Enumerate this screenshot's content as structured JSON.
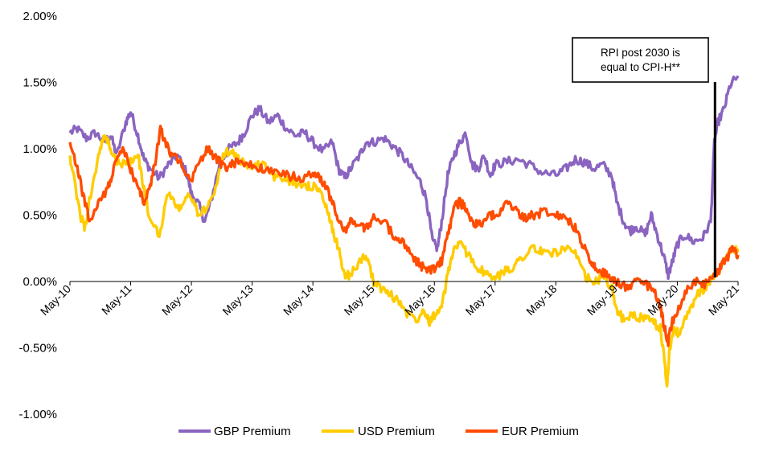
{
  "chart_data": {
    "type": "line",
    "title": "",
    "xlabel": "",
    "ylabel": "",
    "ylim": [
      -1.0,
      2.0
    ],
    "y_ticks": [
      "2.00%",
      "1.50%",
      "1.00%",
      "0.50%",
      "0.00%",
      "-0.50%",
      "-1.00%"
    ],
    "x_ticks": [
      "May-10",
      "May-11",
      "May-12",
      "May-13",
      "May-14",
      "May-15",
      "May-16",
      "May-17",
      "May-18",
      "May-19",
      "May-20",
      "May-21"
    ],
    "x_range": [
      2010.33,
      2021.33
    ],
    "grid": false,
    "legend_position": "bottom",
    "annotation": {
      "lines": [
        "RPI post 2030 is",
        "equal to CPI-H**"
      ],
      "x": 2020.95,
      "y_from": 0.03,
      "y_to": 1.48
    },
    "series": [
      {
        "name": "GBP Premium",
        "color": "#8a64c0",
        "points": [
          [
            2010.33,
            1.12
          ],
          [
            2010.45,
            1.15
          ],
          [
            2010.6,
            1.08
          ],
          [
            2010.75,
            1.12
          ],
          [
            2010.9,
            1.05
          ],
          [
            2011.0,
            1.1
          ],
          [
            2011.1,
            0.95
          ],
          [
            2011.25,
            1.2
          ],
          [
            2011.33,
            1.28
          ],
          [
            2011.45,
            1.1
          ],
          [
            2011.55,
            0.92
          ],
          [
            2011.65,
            0.85
          ],
          [
            2011.8,
            0.78
          ],
          [
            2011.95,
            0.88
          ],
          [
            2012.1,
            0.95
          ],
          [
            2012.25,
            0.82
          ],
          [
            2012.33,
            0.66
          ],
          [
            2012.45,
            0.58
          ],
          [
            2012.55,
            0.45
          ],
          [
            2012.65,
            0.6
          ],
          [
            2012.8,
            0.9
          ],
          [
            2012.95,
            1.0
          ],
          [
            2013.1,
            1.05
          ],
          [
            2013.2,
            1.12
          ],
          [
            2013.33,
            1.25
          ],
          [
            2013.45,
            1.3
          ],
          [
            2013.6,
            1.2
          ],
          [
            2013.75,
            1.25
          ],
          [
            2013.9,
            1.15
          ],
          [
            2014.05,
            1.1
          ],
          [
            2014.2,
            1.12
          ],
          [
            2014.33,
            1.05
          ],
          [
            2014.5,
            0.98
          ],
          [
            2014.65,
            1.05
          ],
          [
            2014.75,
            0.85
          ],
          [
            2014.85,
            0.78
          ],
          [
            2014.95,
            0.85
          ],
          [
            2015.1,
            0.95
          ],
          [
            2015.2,
            1.05
          ],
          [
            2015.33,
            1.05
          ],
          [
            2015.5,
            1.08
          ],
          [
            2015.65,
            1.02
          ],
          [
            2015.8,
            0.95
          ],
          [
            2015.95,
            0.85
          ],
          [
            2016.1,
            0.75
          ],
          [
            2016.2,
            0.62
          ],
          [
            2016.3,
            0.3
          ],
          [
            2016.38,
            0.25
          ],
          [
            2016.45,
            0.45
          ],
          [
            2016.55,
            0.8
          ],
          [
            2016.65,
            0.95
          ],
          [
            2016.75,
            1.05
          ],
          [
            2016.85,
            1.12
          ],
          [
            2016.95,
            0.88
          ],
          [
            2017.05,
            0.85
          ],
          [
            2017.15,
            0.95
          ],
          [
            2017.25,
            0.8
          ],
          [
            2017.33,
            0.88
          ],
          [
            2017.5,
            0.9
          ],
          [
            2017.7,
            0.92
          ],
          [
            2017.9,
            0.88
          ],
          [
            2018.1,
            0.82
          ],
          [
            2018.33,
            0.8
          ],
          [
            2018.5,
            0.85
          ],
          [
            2018.65,
            0.92
          ],
          [
            2018.8,
            0.9
          ],
          [
            2018.95,
            0.85
          ],
          [
            2019.1,
            0.88
          ],
          [
            2019.25,
            0.8
          ],
          [
            2019.33,
            0.6
          ],
          [
            2019.45,
            0.45
          ],
          [
            2019.55,
            0.38
          ],
          [
            2019.65,
            0.42
          ],
          [
            2019.8,
            0.35
          ],
          [
            2019.9,
            0.5
          ],
          [
            2020.0,
            0.35
          ],
          [
            2020.1,
            0.2
          ],
          [
            2020.18,
            0.05
          ],
          [
            2020.25,
            0.15
          ],
          [
            2020.33,
            0.28
          ],
          [
            2020.45,
            0.35
          ],
          [
            2020.6,
            0.3
          ],
          [
            2020.75,
            0.33
          ],
          [
            2020.88,
            0.45
          ],
          [
            2020.94,
            1.05
          ],
          [
            2021.0,
            1.2
          ],
          [
            2021.1,
            1.3
          ],
          [
            2021.2,
            1.48
          ],
          [
            2021.33,
            1.55
          ]
        ]
      },
      {
        "name": "USD Premium",
        "color": "#ffcc00",
        "points": [
          [
            2010.33,
            0.95
          ],
          [
            2010.42,
            0.7
          ],
          [
            2010.5,
            0.5
          ],
          [
            2010.58,
            0.4
          ],
          [
            2010.65,
            0.6
          ],
          [
            2010.8,
            0.95
          ],
          [
            2010.9,
            1.1
          ],
          [
            2011.0,
            1.0
          ],
          [
            2011.1,
            0.9
          ],
          [
            2011.25,
            0.88
          ],
          [
            2011.33,
            0.9
          ],
          [
            2011.45,
            0.95
          ],
          [
            2011.55,
            0.7
          ],
          [
            2011.65,
            0.45
          ],
          [
            2011.8,
            0.35
          ],
          [
            2011.95,
            0.68
          ],
          [
            2012.1,
            0.55
          ],
          [
            2012.2,
            0.6
          ],
          [
            2012.33,
            0.65
          ],
          [
            2012.45,
            0.5
          ],
          [
            2012.6,
            0.55
          ],
          [
            2012.75,
            0.75
          ],
          [
            2012.85,
            0.95
          ],
          [
            2013.0,
            1.0
          ],
          [
            2013.1,
            0.92
          ],
          [
            2013.2,
            0.9
          ],
          [
            2013.33,
            0.85
          ],
          [
            2013.5,
            0.9
          ],
          [
            2013.65,
            0.8
          ],
          [
            2013.8,
            0.78
          ],
          [
            2014.0,
            0.75
          ],
          [
            2014.2,
            0.72
          ],
          [
            2014.33,
            0.72
          ],
          [
            2014.45,
            0.68
          ],
          [
            2014.55,
            0.55
          ],
          [
            2014.65,
            0.4
          ],
          [
            2014.75,
            0.25
          ],
          [
            2014.85,
            0.05
          ],
          [
            2014.95,
            0.05
          ],
          [
            2015.1,
            0.15
          ],
          [
            2015.2,
            0.2
          ],
          [
            2015.33,
            0.0
          ],
          [
            2015.45,
            -0.05
          ],
          [
            2015.6,
            -0.1
          ],
          [
            2015.75,
            -0.15
          ],
          [
            2015.9,
            -0.25
          ],
          [
            2016.05,
            -0.28
          ],
          [
            2016.15,
            -0.2
          ],
          [
            2016.25,
            -0.3
          ],
          [
            2016.33,
            -0.25
          ],
          [
            2016.45,
            -0.2
          ],
          [
            2016.55,
            0.05
          ],
          [
            2016.65,
            0.25
          ],
          [
            2016.75,
            0.28
          ],
          [
            2016.9,
            0.2
          ],
          [
            2017.05,
            0.1
          ],
          [
            2017.2,
            0.05
          ],
          [
            2017.33,
            0.02
          ],
          [
            2017.5,
            0.08
          ],
          [
            2017.65,
            0.12
          ],
          [
            2017.8,
            0.2
          ],
          [
            2017.95,
            0.25
          ],
          [
            2018.1,
            0.22
          ],
          [
            2018.33,
            0.22
          ],
          [
            2018.5,
            0.25
          ],
          [
            2018.65,
            0.2
          ],
          [
            2018.8,
            0.05
          ],
          [
            2018.95,
            -0.02
          ],
          [
            2019.1,
            0.05
          ],
          [
            2019.25,
            -0.05
          ],
          [
            2019.33,
            -0.2
          ],
          [
            2019.45,
            -0.3
          ],
          [
            2019.6,
            -0.25
          ],
          [
            2019.75,
            -0.28
          ],
          [
            2019.9,
            -0.3
          ],
          [
            2020.05,
            -0.35
          ],
          [
            2020.12,
            -0.6
          ],
          [
            2020.16,
            -0.8
          ],
          [
            2020.2,
            -0.5
          ],
          [
            2020.28,
            -0.35
          ],
          [
            2020.35,
            -0.4
          ],
          [
            2020.5,
            -0.25
          ],
          [
            2020.65,
            -0.1
          ],
          [
            2020.8,
            -0.05
          ],
          [
            2020.95,
            0.05
          ],
          [
            2021.05,
            0.1
          ],
          [
            2021.15,
            0.2
          ],
          [
            2021.25,
            0.25
          ],
          [
            2021.33,
            0.22
          ]
        ]
      },
      {
        "name": "EUR Premium",
        "color": "#ff4c00",
        "points": [
          [
            2010.33,
            1.05
          ],
          [
            2010.45,
            0.85
          ],
          [
            2010.55,
            0.65
          ],
          [
            2010.65,
            0.45
          ],
          [
            2010.8,
            0.6
          ],
          [
            2010.95,
            0.7
          ],
          [
            2011.05,
            0.85
          ],
          [
            2011.2,
            1.0
          ],
          [
            2011.33,
            0.85
          ],
          [
            2011.45,
            0.7
          ],
          [
            2011.55,
            0.6
          ],
          [
            2011.65,
            0.7
          ],
          [
            2011.75,
            0.95
          ],
          [
            2011.82,
            1.15
          ],
          [
            2011.9,
            1.05
          ],
          [
            2012.0,
            0.95
          ],
          [
            2012.15,
            0.92
          ],
          [
            2012.3,
            0.75
          ],
          [
            2012.45,
            0.88
          ],
          [
            2012.6,
            1.0
          ],
          [
            2012.75,
            0.92
          ],
          [
            2012.9,
            0.85
          ],
          [
            2013.0,
            0.9
          ],
          [
            2013.15,
            0.88
          ],
          [
            2013.33,
            0.88
          ],
          [
            2013.5,
            0.85
          ],
          [
            2013.7,
            0.82
          ],
          [
            2013.9,
            0.8
          ],
          [
            2014.1,
            0.78
          ],
          [
            2014.33,
            0.8
          ],
          [
            2014.45,
            0.78
          ],
          [
            2014.55,
            0.7
          ],
          [
            2014.65,
            0.6
          ],
          [
            2014.75,
            0.45
          ],
          [
            2014.85,
            0.38
          ],
          [
            2014.95,
            0.45
          ],
          [
            2015.1,
            0.42
          ],
          [
            2015.2,
            0.4
          ],
          [
            2015.33,
            0.48
          ],
          [
            2015.5,
            0.45
          ],
          [
            2015.65,
            0.35
          ],
          [
            2015.8,
            0.3
          ],
          [
            2015.95,
            0.2
          ],
          [
            2016.05,
            0.15
          ],
          [
            2016.15,
            0.1
          ],
          [
            2016.25,
            0.08
          ],
          [
            2016.33,
            0.1
          ],
          [
            2016.45,
            0.15
          ],
          [
            2016.55,
            0.35
          ],
          [
            2016.65,
            0.55
          ],
          [
            2016.75,
            0.6
          ],
          [
            2016.85,
            0.55
          ],
          [
            2016.95,
            0.45
          ],
          [
            2017.05,
            0.42
          ],
          [
            2017.2,
            0.48
          ],
          [
            2017.33,
            0.5
          ],
          [
            2017.5,
            0.58
          ],
          [
            2017.65,
            0.55
          ],
          [
            2017.8,
            0.48
          ],
          [
            2017.95,
            0.5
          ],
          [
            2018.1,
            0.52
          ],
          [
            2018.33,
            0.5
          ],
          [
            2018.5,
            0.48
          ],
          [
            2018.65,
            0.4
          ],
          [
            2018.75,
            0.3
          ],
          [
            2018.85,
            0.2
          ],
          [
            2018.95,
            0.12
          ],
          [
            2019.05,
            0.08
          ],
          [
            2019.15,
            0.05
          ],
          [
            2019.25,
            0.02
          ],
          [
            2019.33,
            0.0
          ],
          [
            2019.5,
            -0.05
          ],
          [
            2019.65,
            0.0
          ],
          [
            2019.8,
            -0.02
          ],
          [
            2019.95,
            -0.05
          ],
          [
            2020.05,
            -0.2
          ],
          [
            2020.12,
            -0.35
          ],
          [
            2020.18,
            -0.45
          ],
          [
            2020.25,
            -0.3
          ],
          [
            2020.35,
            -0.2
          ],
          [
            2020.5,
            -0.05
          ],
          [
            2020.65,
            0.0
          ],
          [
            2020.8,
            -0.02
          ],
          [
            2020.95,
            0.05
          ],
          [
            2021.05,
            0.12
          ],
          [
            2021.15,
            0.18
          ],
          [
            2021.25,
            0.25
          ],
          [
            2021.33,
            0.2
          ]
        ]
      }
    ]
  }
}
